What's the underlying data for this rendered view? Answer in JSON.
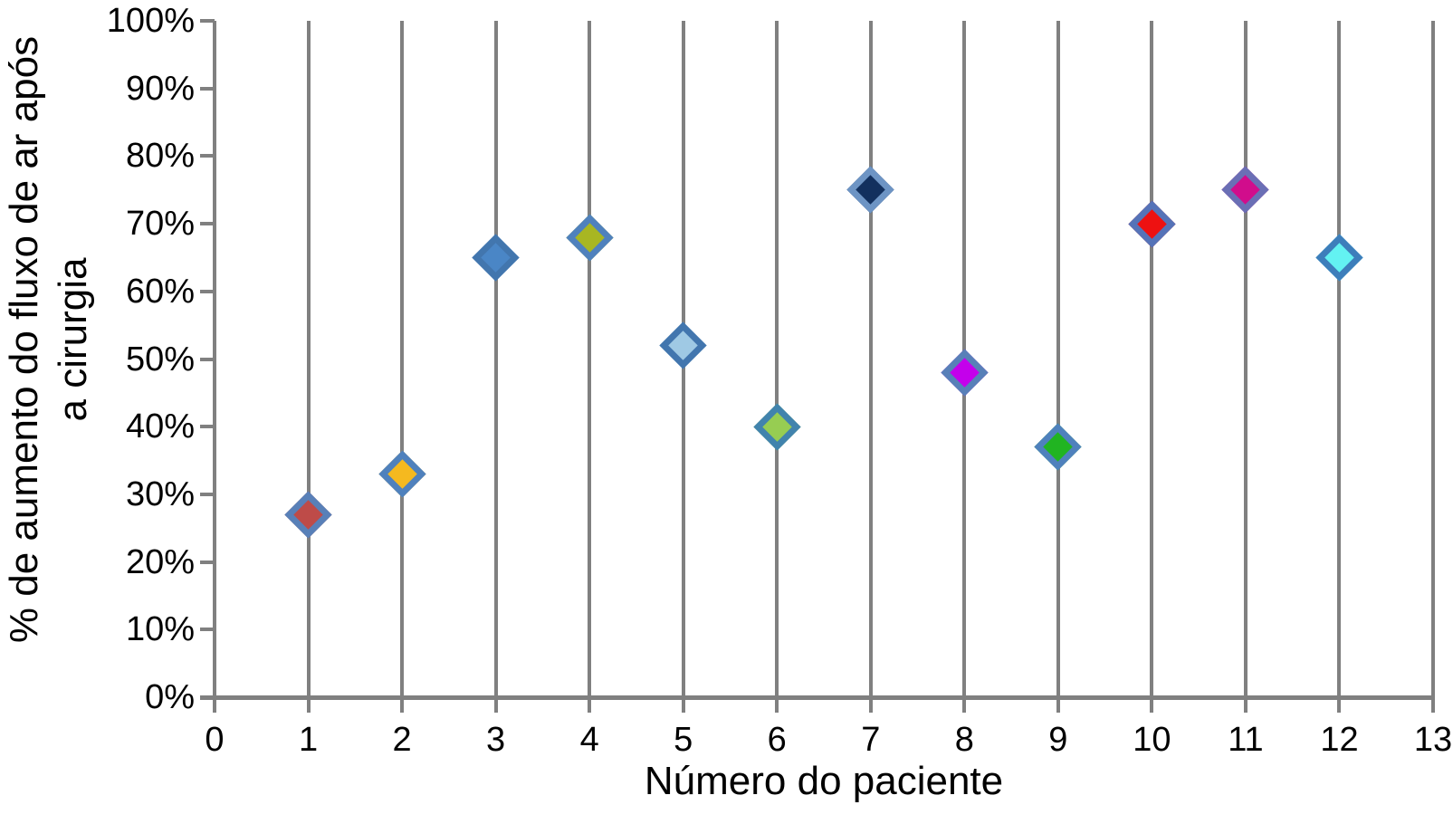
{
  "figure": {
    "background": "#ffffff",
    "axis_color": "#808080",
    "text_color": "#000000"
  },
  "chart_data": {
    "type": "scatter",
    "marker": "diamond",
    "title": "",
    "xlabel": "Número do paciente",
    "ylabel": "% de aumento do fluxo de ar após a cirurgia",
    "ylabel_line1": "% de aumento do fluxo de ar após",
    "ylabel_line2": "a cirurgia",
    "xlim": [
      0,
      13
    ],
    "ylim": [
      0,
      100
    ],
    "x_ticks": [
      "0",
      "1",
      "2",
      "3",
      "4",
      "5",
      "6",
      "7",
      "8",
      "9",
      "10",
      "11",
      "12",
      "13"
    ],
    "y_ticks": [
      "0%",
      "10%",
      "20%",
      "30%",
      "40%",
      "50%",
      "60%",
      "70%",
      "80%",
      "90%",
      "100%"
    ],
    "grid": "vertical-gridlines-at-each-x-tick",
    "legend": "none",
    "points": [
      {
        "patient": 1,
        "value_pct": 27,
        "fill": "#BE4B48",
        "stroke": "#5880B8"
      },
      {
        "patient": 2,
        "value_pct": 33,
        "fill": "#F5B91F",
        "stroke": "#4F81BD"
      },
      {
        "patient": 3,
        "value_pct": 65,
        "fill": "#4A86C6",
        "stroke": "#4276AE"
      },
      {
        "patient": 4,
        "value_pct": 68,
        "fill": "#A8B622",
        "stroke": "#4F81BD"
      },
      {
        "patient": 5,
        "value_pct": 52,
        "fill": "#9FC9E4",
        "stroke": "#4276AE"
      },
      {
        "patient": 6,
        "value_pct": 40,
        "fill": "#97CD52",
        "stroke": "#4183AD"
      },
      {
        "patient": 7,
        "value_pct": 75,
        "fill": "#12305E",
        "stroke": "#6D94C4"
      },
      {
        "patient": 8,
        "value_pct": 48,
        "fill": "#C400EB",
        "stroke": "#5880B8"
      },
      {
        "patient": 9,
        "value_pct": 37,
        "fill": "#21B421",
        "stroke": "#4F81BD"
      },
      {
        "patient": 10,
        "value_pct": 70,
        "fill": "#EE1111",
        "stroke": "#5573B8"
      },
      {
        "patient": 11,
        "value_pct": 75,
        "fill": "#D10D8C",
        "stroke": "#6A6FB5"
      },
      {
        "patient": 12,
        "value_pct": 65,
        "fill": "#63F2F2",
        "stroke": "#3D7EBB"
      }
    ]
  }
}
